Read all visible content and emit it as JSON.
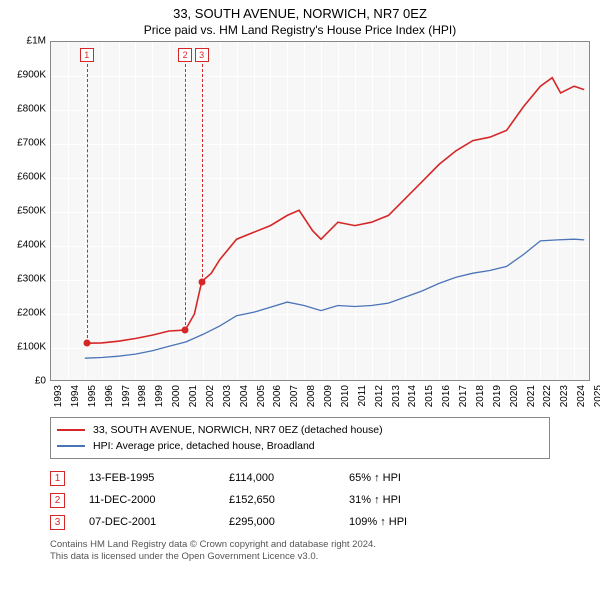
{
  "title": "33, SOUTH AVENUE, NORWICH, NR7 0EZ",
  "subtitle": "Price paid vs. HM Land Registry's House Price Index (HPI)",
  "chart": {
    "background_color": "#f7f7f7",
    "grid_color": "#ffffff",
    "border_color": "#888888",
    "xlim": [
      1993,
      2025
    ],
    "ylim": [
      0,
      1000000
    ],
    "yticks": [
      {
        "v": 0,
        "label": "£0"
      },
      {
        "v": 100000,
        "label": "£100K"
      },
      {
        "v": 200000,
        "label": "£200K"
      },
      {
        "v": 300000,
        "label": "£300K"
      },
      {
        "v": 400000,
        "label": "£400K"
      },
      {
        "v": 500000,
        "label": "£500K"
      },
      {
        "v": 600000,
        "label": "£600K"
      },
      {
        "v": 700000,
        "label": "£700K"
      },
      {
        "v": 800000,
        "label": "£800K"
      },
      {
        "v": 900000,
        "label": "£900K"
      },
      {
        "v": 1000000,
        "label": "£1M"
      }
    ],
    "xticks": [
      1993,
      1994,
      1995,
      1996,
      1997,
      1998,
      1999,
      2000,
      2001,
      2002,
      2003,
      2004,
      2005,
      2006,
      2007,
      2008,
      2009,
      2010,
      2011,
      2012,
      2013,
      2014,
      2015,
      2016,
      2017,
      2018,
      2019,
      2020,
      2021,
      2022,
      2023,
      2024,
      2025
    ],
    "series": [
      {
        "name": "33, SOUTH AVENUE, NORWICH, NR7 0EZ (detached house)",
        "color": "#d62728",
        "width": 1.6,
        "data": [
          [
            1995.12,
            114000
          ],
          [
            1996,
            115000
          ],
          [
            1997,
            120000
          ],
          [
            1998,
            128000
          ],
          [
            1999,
            138000
          ],
          [
            2000,
            150000
          ],
          [
            2000.95,
            152650
          ],
          [
            2001.5,
            200000
          ],
          [
            2001.93,
            295000
          ],
          [
            2002.5,
            320000
          ],
          [
            2003,
            360000
          ],
          [
            2004,
            420000
          ],
          [
            2005,
            440000
          ],
          [
            2006,
            460000
          ],
          [
            2007,
            490000
          ],
          [
            2007.7,
            505000
          ],
          [
            2008.5,
            445000
          ],
          [
            2009,
            420000
          ],
          [
            2010,
            470000
          ],
          [
            2011,
            460000
          ],
          [
            2012,
            470000
          ],
          [
            2013,
            490000
          ],
          [
            2014,
            540000
          ],
          [
            2015,
            590000
          ],
          [
            2016,
            640000
          ],
          [
            2017,
            680000
          ],
          [
            2018,
            710000
          ],
          [
            2019,
            720000
          ],
          [
            2020,
            740000
          ],
          [
            2021,
            810000
          ],
          [
            2022,
            870000
          ],
          [
            2022.7,
            895000
          ],
          [
            2023.2,
            850000
          ],
          [
            2024,
            870000
          ],
          [
            2024.6,
            860000
          ]
        ]
      },
      {
        "name": "HPI: Average price, detached house, Broadland",
        "color": "#4a74b8",
        "width": 1.3,
        "data": [
          [
            1995,
            70000
          ],
          [
            1996,
            72000
          ],
          [
            1997,
            76000
          ],
          [
            1998,
            82000
          ],
          [
            1999,
            92000
          ],
          [
            2000,
            105000
          ],
          [
            2001,
            118000
          ],
          [
            2002,
            140000
          ],
          [
            2003,
            165000
          ],
          [
            2004,
            195000
          ],
          [
            2005,
            205000
          ],
          [
            2006,
            220000
          ],
          [
            2007,
            235000
          ],
          [
            2008,
            225000
          ],
          [
            2009,
            210000
          ],
          [
            2010,
            225000
          ],
          [
            2011,
            222000
          ],
          [
            2012,
            225000
          ],
          [
            2013,
            232000
          ],
          [
            2014,
            250000
          ],
          [
            2015,
            268000
          ],
          [
            2016,
            290000
          ],
          [
            2017,
            308000
          ],
          [
            2018,
            320000
          ],
          [
            2019,
            328000
          ],
          [
            2020,
            340000
          ],
          [
            2021,
            375000
          ],
          [
            2022,
            415000
          ],
          [
            2023,
            418000
          ],
          [
            2024,
            420000
          ],
          [
            2024.6,
            418000
          ]
        ]
      }
    ],
    "markers": [
      {
        "n": "1",
        "x": 1995.12,
        "y": 114000
      },
      {
        "n": "2",
        "x": 2000.95,
        "y": 152650
      },
      {
        "n": "3",
        "x": 2001.93,
        "y": 295000
      }
    ]
  },
  "legend": {
    "items": [
      {
        "color": "#d62728",
        "label": "33, SOUTH AVENUE, NORWICH, NR7 0EZ (detached house)"
      },
      {
        "color": "#4a74b8",
        "label": "HPI: Average price, detached house, Broadland"
      }
    ]
  },
  "events": [
    {
      "n": "1",
      "date": "13-FEB-1995",
      "price": "£114,000",
      "pct": "65% ↑ HPI"
    },
    {
      "n": "2",
      "date": "11-DEC-2000",
      "price": "£152,650",
      "pct": "31% ↑ HPI"
    },
    {
      "n": "3",
      "date": "07-DEC-2001",
      "price": "£295,000",
      "pct": "109% ↑ HPI"
    }
  ],
  "footer_line1": "Contains HM Land Registry data © Crown copyright and database right 2024.",
  "footer_line2": "This data is licensed under the Open Government Licence v3.0."
}
